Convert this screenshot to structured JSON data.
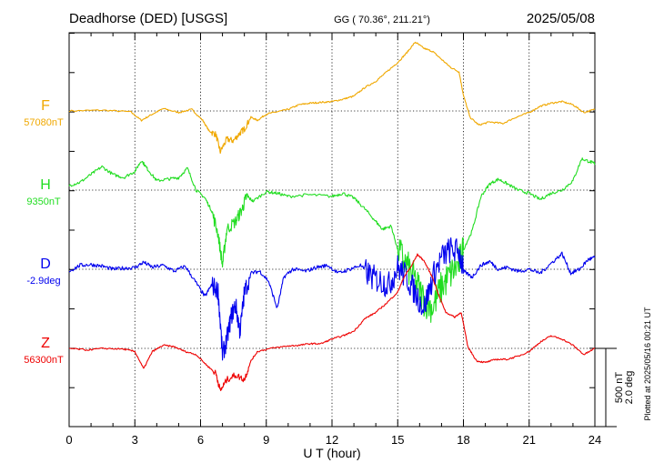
{
  "header": {
    "station": "Deadhorse (DED)  [USGS]",
    "coords": "GG ( 70.36°, 211.21°)",
    "date": "2025/05/08"
  },
  "side_note": "Plotted at 2025/05/16 00:21 UT",
  "scale": {
    "line1": "500 nT",
    "line2": "2.0 deg"
  },
  "chart_data": {
    "type": "line",
    "title": "Deadhorse (DED)  [USGS]",
    "xlabel": "U T (hour)",
    "xlim": [
      0,
      24
    ],
    "xticks": [
      "0",
      "3",
      "6",
      "9",
      "12",
      "15",
      "18",
      "21",
      "24"
    ],
    "grid": true,
    "series": [
      {
        "name": "F",
        "baseline": "57080nT",
        "color": "#f0a800",
        "points": [
          [
            0,
            0
          ],
          [
            1.5,
            5
          ],
          [
            2.8,
            -5
          ],
          [
            3.3,
            -60
          ],
          [
            3.8,
            -20
          ],
          [
            4.3,
            15
          ],
          [
            5.0,
            -10
          ],
          [
            5.6,
            10
          ],
          [
            6.1,
            -60
          ],
          [
            6.4,
            -130
          ],
          [
            6.7,
            -150
          ],
          [
            6.9,
            -260
          ],
          [
            7.2,
            -180
          ],
          [
            7.5,
            -190
          ],
          [
            7.8,
            -140
          ],
          [
            8.0,
            -115
          ],
          [
            8.3,
            -40
          ],
          [
            8.6,
            -60
          ],
          [
            9.0,
            -20
          ],
          [
            9.5,
            -5
          ],
          [
            10.0,
            10
          ],
          [
            10.5,
            40
          ],
          [
            11.0,
            50
          ],
          [
            11.5,
            55
          ],
          [
            12.0,
            60
          ],
          [
            12.5,
            75
          ],
          [
            13.0,
            95
          ],
          [
            13.5,
            150
          ],
          [
            14.0,
            190
          ],
          [
            14.5,
            250
          ],
          [
            15.0,
            310
          ],
          [
            15.4,
            370
          ],
          [
            15.8,
            440
          ],
          [
            16.2,
            400
          ],
          [
            16.6,
            380
          ],
          [
            17.0,
            330
          ],
          [
            17.4,
            280
          ],
          [
            17.8,
            250
          ],
          [
            18.0,
            100
          ],
          [
            18.3,
            -40
          ],
          [
            18.7,
            -90
          ],
          [
            19.2,
            -70
          ],
          [
            19.8,
            -80
          ],
          [
            20.4,
            -40
          ],
          [
            21.0,
            -10
          ],
          [
            21.5,
            30
          ],
          [
            22.0,
            50
          ],
          [
            22.5,
            60
          ],
          [
            23.0,
            40
          ],
          [
            23.5,
            -10
          ],
          [
            24.0,
            10
          ]
        ]
      },
      {
        "name": "H",
        "baseline": "9350nT",
        "color": "#22dd22",
        "points": [
          [
            0,
            30
          ],
          [
            0.5,
            50
          ],
          [
            1.0,
            100
          ],
          [
            1.5,
            150
          ],
          [
            2.0,
            100
          ],
          [
            2.5,
            80
          ],
          [
            3.0,
            120
          ],
          [
            3.3,
            190
          ],
          [
            3.6,
            130
          ],
          [
            4.0,
            60
          ],
          [
            4.5,
            70
          ],
          [
            5.0,
            80
          ],
          [
            5.4,
            140
          ],
          [
            5.8,
            0
          ],
          [
            6.2,
            -50
          ],
          [
            6.5,
            -130
          ],
          [
            6.8,
            -280
          ],
          [
            7.0,
            -480
          ],
          [
            7.2,
            -250
          ],
          [
            7.6,
            -200
          ],
          [
            7.9,
            -120
          ],
          [
            8.1,
            -40
          ],
          [
            8.4,
            -70
          ],
          [
            9.0,
            -10
          ],
          [
            9.5,
            -20
          ],
          [
            10.0,
            -40
          ],
          [
            11.0,
            -30
          ],
          [
            12.0,
            -40
          ],
          [
            12.5,
            -20
          ],
          [
            13.0,
            -50
          ],
          [
            13.5,
            -120
          ],
          [
            14.0,
            -200
          ],
          [
            14.3,
            -250
          ],
          [
            14.7,
            -230
          ],
          [
            15.0,
            -380
          ],
          [
            15.4,
            -480
          ],
          [
            15.8,
            -580
          ],
          [
            16.2,
            -700
          ],
          [
            16.6,
            -750
          ],
          [
            17.0,
            -620
          ],
          [
            17.4,
            -540
          ],
          [
            17.8,
            -470
          ],
          [
            18.0,
            -380
          ],
          [
            18.4,
            -260
          ],
          [
            18.8,
            -40
          ],
          [
            19.2,
            40
          ],
          [
            19.6,
            70
          ],
          [
            20.0,
            40
          ],
          [
            20.5,
            0
          ],
          [
            21.0,
            -20
          ],
          [
            21.5,
            -60
          ],
          [
            22.0,
            -20
          ],
          [
            22.5,
            0
          ],
          [
            23.0,
            60
          ],
          [
            23.4,
            200
          ],
          [
            23.8,
            180
          ],
          [
            24.0,
            170
          ]
        ]
      },
      {
        "name": "D",
        "baseline": "-2.9deg",
        "color": "#0000ee",
        "points": [
          [
            0,
            -0.05
          ],
          [
            0.5,
            0.1
          ],
          [
            1.0,
            0.12
          ],
          [
            1.5,
            0.08
          ],
          [
            2.0,
            0.0
          ],
          [
            2.5,
            0.03
          ],
          [
            3.0,
            0.04
          ],
          [
            3.4,
            0.18
          ],
          [
            3.8,
            0.05
          ],
          [
            4.3,
            0.1
          ],
          [
            4.8,
            -0.05
          ],
          [
            5.3,
            0.08
          ],
          [
            5.8,
            -0.35
          ],
          [
            6.2,
            -0.7
          ],
          [
            6.5,
            -0.4
          ],
          [
            6.8,
            -0.55
          ],
          [
            7.0,
            -2.2
          ],
          [
            7.2,
            -1.8
          ],
          [
            7.4,
            -1.2
          ],
          [
            7.6,
            -0.9
          ],
          [
            7.8,
            -1.6
          ],
          [
            8.0,
            -0.6
          ],
          [
            8.3,
            -0.1
          ],
          [
            8.7,
            -0.05
          ],
          [
            9.1,
            -0.3
          ],
          [
            9.5,
            -1.0
          ],
          [
            9.8,
            -0.2
          ],
          [
            10.2,
            0.0
          ],
          [
            10.8,
            -0.05
          ],
          [
            11.3,
            0.05
          ],
          [
            11.8,
            0.1
          ],
          [
            12.3,
            -0.1
          ],
          [
            12.8,
            0.0
          ],
          [
            13.3,
            0.1
          ],
          [
            13.8,
            -0.2
          ],
          [
            14.2,
            -0.3
          ],
          [
            14.6,
            -0.4
          ],
          [
            15.0,
            0.05
          ],
          [
            15.4,
            -0.2
          ],
          [
            15.8,
            -0.6
          ],
          [
            16.2,
            -1.0
          ],
          [
            16.6,
            -0.2
          ],
          [
            17.0,
            0.3
          ],
          [
            17.4,
            0.5
          ],
          [
            17.8,
            0.45
          ],
          [
            18.0,
            -0.05
          ],
          [
            18.4,
            -0.2
          ],
          [
            18.8,
            0.1
          ],
          [
            19.2,
            0.2
          ],
          [
            19.6,
            0.0
          ],
          [
            20.0,
            0.05
          ],
          [
            20.5,
            -0.05
          ],
          [
            21.0,
            0.0
          ],
          [
            21.5,
            -0.1
          ],
          [
            22.0,
            0.15
          ],
          [
            22.5,
            0.4
          ],
          [
            22.9,
            -0.1
          ],
          [
            23.3,
            0.0
          ],
          [
            23.7,
            0.25
          ],
          [
            24.0,
            0.3
          ]
        ]
      },
      {
        "name": "Z",
        "baseline": "56300nT",
        "color": "#ee0000",
        "points": [
          [
            0,
            0
          ],
          [
            0.8,
            -10
          ],
          [
            1.6,
            0
          ],
          [
            2.5,
            -5
          ],
          [
            3.0,
            -20
          ],
          [
            3.4,
            -130
          ],
          [
            3.8,
            -20
          ],
          [
            4.3,
            20
          ],
          [
            4.8,
            10
          ],
          [
            5.3,
            -20
          ],
          [
            5.8,
            -40
          ],
          [
            6.3,
            -110
          ],
          [
            6.7,
            -160
          ],
          [
            6.9,
            -270
          ],
          [
            7.2,
            -200
          ],
          [
            7.6,
            -170
          ],
          [
            8.0,
            -200
          ],
          [
            8.3,
            -80
          ],
          [
            8.6,
            -20
          ],
          [
            9.2,
            0
          ],
          [
            10.0,
            15
          ],
          [
            10.5,
            20
          ],
          [
            11.0,
            30
          ],
          [
            11.5,
            30
          ],
          [
            12.0,
            60
          ],
          [
            12.5,
            80
          ],
          [
            13.0,
            110
          ],
          [
            13.5,
            190
          ],
          [
            14.0,
            230
          ],
          [
            14.5,
            290
          ],
          [
            15.0,
            360
          ],
          [
            15.3,
            460
          ],
          [
            15.6,
            520
          ],
          [
            15.9,
            600
          ],
          [
            16.2,
            560
          ],
          [
            16.6,
            450
          ],
          [
            16.9,
            330
          ],
          [
            17.2,
            230
          ],
          [
            17.6,
            200
          ],
          [
            17.9,
            230
          ],
          [
            18.2,
            10
          ],
          [
            18.6,
            -80
          ],
          [
            19.0,
            -90
          ],
          [
            19.5,
            -70
          ],
          [
            20.0,
            -70
          ],
          [
            20.5,
            -50
          ],
          [
            21.0,
            -20
          ],
          [
            21.5,
            40
          ],
          [
            22.0,
            80
          ],
          [
            22.5,
            60
          ],
          [
            23.0,
            20
          ],
          [
            23.5,
            -40
          ],
          [
            24.0,
            0
          ]
        ]
      }
    ]
  }
}
